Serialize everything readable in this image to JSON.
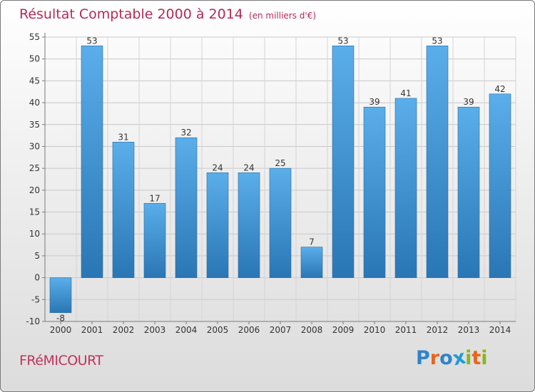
{
  "header": {
    "title": "Résultat Comptable 2000 à 2014",
    "subtitle": "(en milliers d'€)"
  },
  "footer": {
    "commune": "FRéMICOURT",
    "logo_letters": [
      "P",
      "r",
      "o",
      "x",
      "i",
      "t",
      "i"
    ],
    "logo_colors": [
      "#2f84c9",
      "#e8641b",
      "#2f84c9",
      "#1f9ad6",
      "#86b820",
      "#e8641b",
      "#86b820"
    ]
  },
  "chart_data": {
    "type": "bar",
    "title": "Résultat Comptable 2000 à 2014",
    "subtitle": "(en milliers d'€)",
    "xlabel": "",
    "ylabel": "",
    "categories": [
      "2000",
      "2001",
      "2002",
      "2003",
      "2004",
      "2005",
      "2006",
      "2007",
      "2008",
      "2009",
      "2010",
      "2011",
      "2012",
      "2013",
      "2014"
    ],
    "values": [
      -8,
      53,
      31,
      17,
      32,
      24,
      24,
      25,
      7,
      53,
      39,
      41,
      53,
      39,
      42
    ],
    "ylim": [
      -10,
      55
    ],
    "yticks": [
      -10,
      -5,
      0,
      5,
      10,
      15,
      20,
      25,
      30,
      35,
      40,
      45,
      50,
      55
    ],
    "grid": true,
    "bar_color_top": "#5aaeea",
    "bar_color_bottom": "#2a76b5"
  }
}
